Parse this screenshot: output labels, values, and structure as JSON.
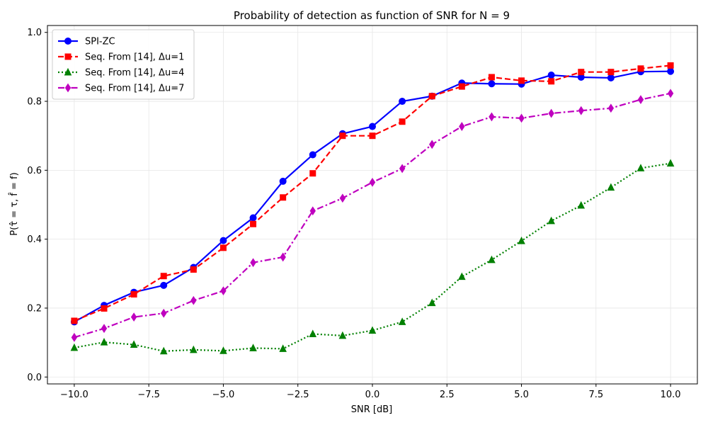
{
  "chart_data": {
    "type": "line",
    "title": "Probability of detection as function of SNR for N = 9",
    "xlabel": "SNR [dB]",
    "ylabel": "P(τ̂ = τ, f̂ = f)",
    "xlim": [
      -10.9,
      10.9
    ],
    "ylim": [
      -0.02,
      1.02
    ],
    "xticks": [
      -10.0,
      -7.5,
      -5.0,
      -2.5,
      0.0,
      2.5,
      5.0,
      7.5,
      10.0
    ],
    "xtick_labels": [
      "−10.0",
      "−7.5",
      "−5.0",
      "−2.5",
      "0.0",
      "2.5",
      "5.0",
      "7.5",
      "10.0"
    ],
    "yticks": [
      0.0,
      0.2,
      0.4,
      0.6,
      0.8,
      1.0
    ],
    "ytick_labels": [
      "0.0",
      "0.2",
      "0.4",
      "0.6",
      "0.8",
      "1.0"
    ],
    "grid": true,
    "legend_position": "top-left",
    "x": [
      -10,
      -9,
      -8,
      -7,
      -6,
      -5,
      -4,
      -3,
      -2,
      -1,
      0,
      1,
      2,
      3,
      4,
      5,
      6,
      7,
      8,
      9,
      10
    ],
    "series": [
      {
        "name": "SPI-ZC",
        "color": "#0000ff",
        "line_style": "solid",
        "marker": "circle",
        "values": [
          0.16,
          0.208,
          0.246,
          0.266,
          0.318,
          0.396,
          0.462,
          0.568,
          0.645,
          0.706,
          0.727,
          0.8,
          0.815,
          0.853,
          0.851,
          0.85,
          0.876,
          0.87,
          0.868,
          0.886,
          0.887
        ]
      },
      {
        "name": "Seq. From [14], Δu=1",
        "color": "#ff0000",
        "line_style": "dashed",
        "marker": "square",
        "values": [
          0.163,
          0.199,
          0.24,
          0.293,
          0.312,
          0.375,
          0.444,
          0.521,
          0.591,
          0.7,
          0.7,
          0.741,
          0.815,
          0.843,
          0.87,
          0.86,
          0.858,
          0.885,
          0.885,
          0.895,
          0.904
        ]
      },
      {
        "name": "Seq. From [14], Δu=4",
        "color": "#008000",
        "line_style": "dotted",
        "marker": "triangle",
        "values": [
          0.085,
          0.101,
          0.094,
          0.075,
          0.079,
          0.076,
          0.084,
          0.082,
          0.125,
          0.12,
          0.135,
          0.16,
          0.215,
          0.291,
          0.34,
          0.395,
          0.453,
          0.498,
          0.55,
          0.606,
          0.62
        ]
      },
      {
        "name": "Seq. From [14], Δu=7",
        "color": "#bf00bf",
        "line_style": "dashdot",
        "marker": "diamond",
        "values": [
          0.115,
          0.141,
          0.174,
          0.185,
          0.222,
          0.25,
          0.332,
          0.348,
          0.482,
          0.519,
          0.565,
          0.605,
          0.675,
          0.727,
          0.755,
          0.751,
          0.765,
          0.773,
          0.78,
          0.805,
          0.823
        ]
      }
    ]
  }
}
